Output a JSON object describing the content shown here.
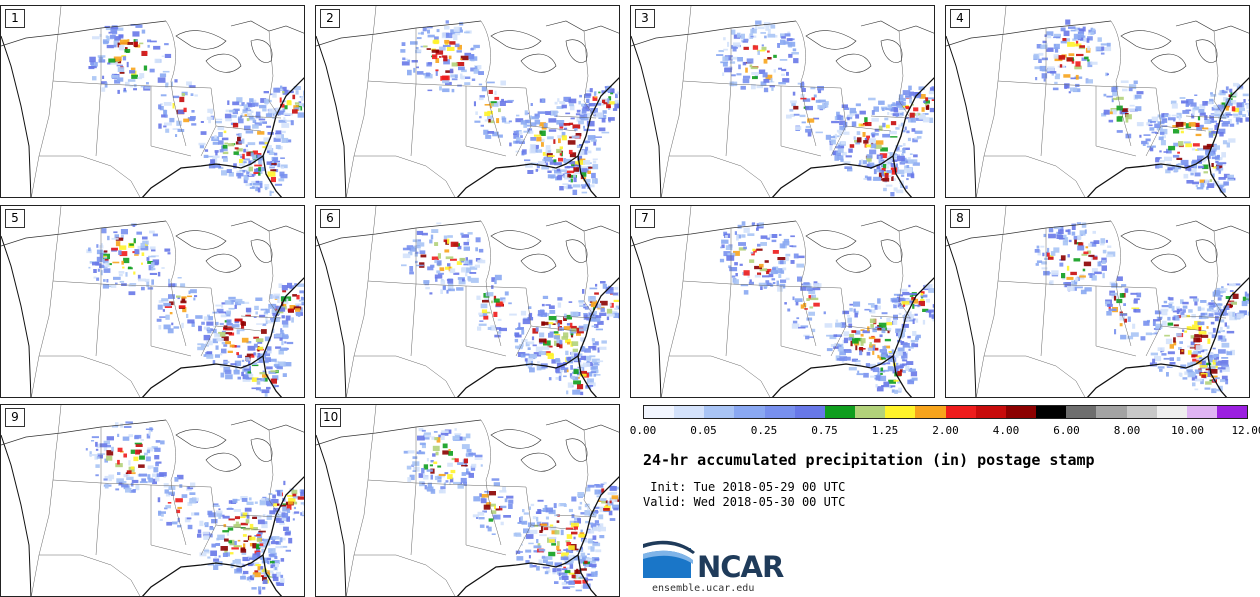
{
  "panels": [
    {
      "label": "1"
    },
    {
      "label": "2"
    },
    {
      "label": "3"
    },
    {
      "label": "4"
    },
    {
      "label": "5"
    },
    {
      "label": "6"
    },
    {
      "label": "7"
    },
    {
      "label": "8"
    },
    {
      "label": "9"
    },
    {
      "label": "10"
    }
  ],
  "colorbar": {
    "colors": [
      "#f2f6ff",
      "#d4e2fb",
      "#a9c4f5",
      "#8aa8f2",
      "#7890ee",
      "#6878e8",
      "#0f9e1e",
      "#b2d27a",
      "#fff32a",
      "#f7a41c",
      "#ee1c1c",
      "#c70b0b",
      "#8c0000",
      "#000000",
      "#6e6e6e",
      "#a3a3a3",
      "#c8c8c8",
      "#eeeeee",
      "#dfb4f3",
      "#9b20e0"
    ],
    "tick_labels": [
      "0.00",
      "0.05",
      "0.25",
      "0.75",
      "1.25",
      "2.00",
      "4.00",
      "6.00",
      "8.00",
      "10.00",
      "12.00"
    ]
  },
  "title": "24-hr accumulated precipitation (in) postage stamp",
  "init": " Init: Tue 2018-05-29 00 UTC",
  "valid": "Valid: Wed 2018-05-30 00 UTC",
  "logo_text": "NCAR",
  "url": "ensemble.ucar.edu"
}
